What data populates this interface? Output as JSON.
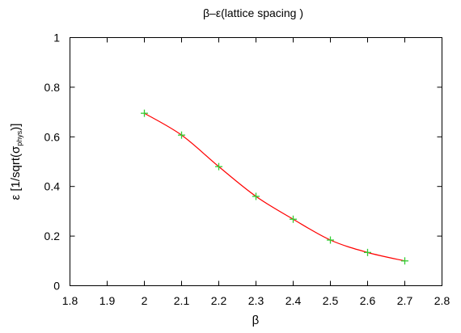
{
  "chart_data": {
    "type": "line",
    "title": "β–ε(lattice spacing )",
    "xlabel": "β",
    "ylabel": {
      "prefix": "ε [1/sqrt(σ",
      "subscript": "phys",
      "suffix": ")]"
    },
    "xlim": [
      1.8,
      2.8
    ],
    "ylim": [
      0,
      1
    ],
    "xticks": [
      "1.8",
      "1.9",
      "2",
      "2.1",
      "2.2",
      "2.3",
      "2.4",
      "2.5",
      "2.6",
      "2.7",
      "2.8"
    ],
    "yticks": [
      "0",
      "0.2",
      "0.4",
      "0.6",
      "0.8",
      "1"
    ],
    "grid": false,
    "series": [
      {
        "x": [
          2.0,
          2.1,
          2.2,
          2.3,
          2.4,
          2.5,
          2.6,
          2.7
        ],
        "y": [
          0.695,
          0.607,
          0.48,
          0.36,
          0.268,
          0.184,
          0.134,
          0.1
        ],
        "curve_color": "#ff0000",
        "marker_color": "#33cc33"
      }
    ]
  }
}
